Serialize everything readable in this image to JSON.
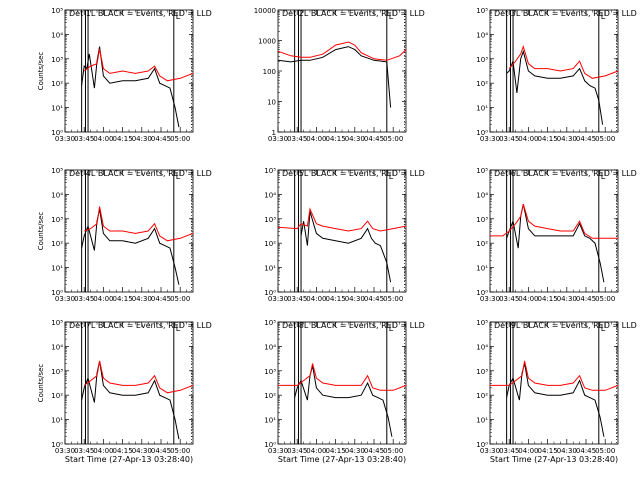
{
  "page": {
    "title": "",
    "colors": {
      "background": "#ffffff",
      "axes": "#000000",
      "events": "#000000",
      "lld": "#ff0000"
    }
  },
  "chart_data": [
    {
      "type": "line",
      "title": "Det 1L BLACK = Events, RED = LLD",
      "xlabel": "",
      "ylabel": "Counts/sec",
      "yscale": "log",
      "ylim_exp": [
        0,
        5
      ],
      "ytick_labels": [
        "10⁰",
        "10¹",
        "10²",
        "10³",
        "10⁴",
        "10⁵"
      ],
      "xlim": [
        "03:30",
        "05:10"
      ],
      "xtick_labels": [
        "03:30",
        "03:45",
        "04:00",
        "04:15",
        "04:30",
        "04:45",
        "05:00"
      ],
      "attenuator_lines": [
        "03:43",
        "03:46",
        "03:48",
        "04:55"
      ],
      "attenuator_label": "L",
      "series": [
        {
          "color": "events",
          "x": [
            "03:43",
            "03:45",
            "03:47",
            "03:49",
            "03:53",
            "03:55",
            "03:57",
            "04:00",
            "04:05",
            "04:15",
            "04:25",
            "04:35",
            "04:40",
            "04:44",
            "04:48",
            "04:52",
            "04:56",
            "04:59"
          ],
          "y_exp": [
            1.9,
            2.7,
            2.6,
            3.2,
            1.8,
            2.9,
            3.5,
            2.3,
            2.0,
            2.1,
            2.1,
            2.2,
            2.6,
            2.0,
            1.9,
            1.8,
            1.0,
            0.2
          ]
        },
        {
          "color": "lld",
          "x": [
            "03:45",
            "03:50",
            "03:55",
            "03:57",
            "04:00",
            "04:05",
            "04:15",
            "04:25",
            "04:35",
            "04:40",
            "04:44",
            "04:50",
            "05:00",
            "05:10"
          ],
          "y_exp": [
            2.5,
            2.7,
            2.8,
            3.4,
            2.6,
            2.4,
            2.5,
            2.4,
            2.5,
            2.7,
            2.3,
            2.1,
            2.2,
            2.4
          ]
        }
      ]
    },
    {
      "type": "line",
      "title": "Det 2L BLACK = Events, RED = LLD",
      "xlabel": "",
      "ylabel": "",
      "yscale": "log",
      "ylim_exp": [
        0,
        4
      ],
      "ytick_labels": [
        "1",
        "10",
        "100",
        "1000",
        "10000"
      ],
      "xlim": [
        "03:30",
        "05:10"
      ],
      "xtick_labels": [
        "03:30",
        "03:45",
        "04:00",
        "04:15",
        "04:30",
        "04:45",
        "05:00"
      ],
      "attenuator_lines": [
        "03:43",
        "03:46",
        "03:48",
        "04:55"
      ],
      "attenuator_label": "L",
      "series": [
        {
          "color": "events",
          "x": [
            "03:30",
            "03:40",
            "03:48",
            "03:55",
            "04:05",
            "04:15",
            "04:25",
            "04:30",
            "04:35",
            "04:45",
            "04:55",
            "04:58"
          ],
          "y_exp": [
            2.35,
            2.3,
            2.35,
            2.35,
            2.45,
            2.7,
            2.8,
            2.7,
            2.5,
            2.35,
            2.3,
            0.8
          ]
        },
        {
          "color": "lld",
          "x": [
            "03:30",
            "03:40",
            "03:48",
            "03:55",
            "04:05",
            "04:15",
            "04:25",
            "04:30",
            "04:35",
            "04:45",
            "04:55",
            "05:05",
            "05:10"
          ],
          "y_exp": [
            2.65,
            2.5,
            2.45,
            2.45,
            2.55,
            2.85,
            2.95,
            2.85,
            2.6,
            2.4,
            2.35,
            2.5,
            2.7
          ]
        }
      ]
    },
    {
      "type": "line",
      "title": "Det 3L BLACK = Events, RED = LLD",
      "xlabel": "",
      "ylabel": "",
      "yscale": "log",
      "ylim_exp": [
        0,
        5
      ],
      "ytick_labels": [
        "10⁰",
        "10¹",
        "10²",
        "10³",
        "10⁴",
        "10⁵"
      ],
      "xlim": [
        "03:30",
        "05:10"
      ],
      "xtick_labels": [
        "03:30",
        "03:45",
        "04:00",
        "04:15",
        "04:30",
        "04:45",
        "05:00"
      ],
      "attenuator_lines": [
        "03:43",
        "03:46",
        "03:48",
        "04:55"
      ],
      "attenuator_label": "L",
      "series": [
        {
          "color": "events",
          "x": [
            "03:43",
            "03:45",
            "03:48",
            "03:51",
            "03:54",
            "03:56",
            "04:00",
            "04:05",
            "04:15",
            "04:25",
            "04:35",
            "04:40",
            "04:44",
            "04:48",
            "04:52",
            "04:55",
            "04:58"
          ],
          "y_exp": [
            2.4,
            2.5,
            2.9,
            1.6,
            3.0,
            3.3,
            2.5,
            2.3,
            2.2,
            2.2,
            2.3,
            2.6,
            2.1,
            1.9,
            1.8,
            1.3,
            0.3
          ]
        },
        {
          "color": "lld",
          "x": [
            "03:45",
            "03:50",
            "03:54",
            "03:56",
            "04:00",
            "04:05",
            "04:15",
            "04:25",
            "04:35",
            "04:40",
            "04:44",
            "04:50",
            "05:00",
            "05:10"
          ],
          "y_exp": [
            2.6,
            2.9,
            3.2,
            3.5,
            2.8,
            2.6,
            2.6,
            2.5,
            2.6,
            2.9,
            2.4,
            2.2,
            2.3,
            2.5
          ]
        }
      ]
    },
    {
      "type": "line",
      "title": "Det 4L BLACK = Events, RED = LLD",
      "xlabel": "",
      "ylabel": "Counts/sec",
      "yscale": "log",
      "ylim_exp": [
        0,
        5
      ],
      "ytick_labels": [
        "10⁰",
        "10¹",
        "10²",
        "10³",
        "10⁴",
        "10⁵"
      ],
      "xlim": [
        "03:30",
        "05:10"
      ],
      "xtick_labels": [
        "03:30",
        "03:45",
        "04:00",
        "04:15",
        "04:30",
        "04:45",
        "05:00"
      ],
      "attenuator_lines": [
        "03:43",
        "03:46",
        "03:48",
        "04:55"
      ],
      "attenuator_label": "L",
      "series": [
        {
          "color": "events",
          "x": [
            "03:43",
            "03:45",
            "03:48",
            "03:53",
            "03:55",
            "03:57",
            "04:00",
            "04:05",
            "04:15",
            "04:25",
            "04:35",
            "04:40",
            "04:44",
            "04:48",
            "04:52",
            "04:56",
            "04:59"
          ],
          "y_exp": [
            1.8,
            2.3,
            2.7,
            1.7,
            2.9,
            3.4,
            2.4,
            2.1,
            2.1,
            2.0,
            2.2,
            2.6,
            2.0,
            1.9,
            1.8,
            1.0,
            0.3
          ]
        },
        {
          "color": "lld",
          "x": [
            "03:45",
            "03:50",
            "03:55",
            "03:57",
            "04:00",
            "04:05",
            "04:15",
            "04:25",
            "04:35",
            "04:40",
            "04:44",
            "04:50",
            "05:00",
            "05:10"
          ],
          "y_exp": [
            2.5,
            2.6,
            2.8,
            3.5,
            2.7,
            2.5,
            2.5,
            2.4,
            2.5,
            2.8,
            2.3,
            2.1,
            2.2,
            2.4
          ]
        }
      ]
    },
    {
      "type": "line",
      "title": "Det 5L BLACK = Events, RED = LLD",
      "xlabel": "",
      "ylabel": "",
      "yscale": "log",
      "ylim_exp": [
        0,
        5
      ],
      "ytick_labels": [
        "10⁰",
        "10¹",
        "10²",
        "10³",
        "10⁴",
        "10⁵"
      ],
      "xlim": [
        "03:30",
        "05:10"
      ],
      "xtick_labels": [
        "03:30",
        "03:45",
        "04:00",
        "04:15",
        "04:30",
        "04:45",
        "05:00"
      ],
      "attenuator_lines": [
        "03:43",
        "03:46",
        "03:48",
        "04:55"
      ],
      "attenuator_label": "L",
      "series": [
        {
          "color": "events",
          "x": [
            "03:48",
            "03:50",
            "03:53",
            "03:55",
            "04:00",
            "04:05",
            "04:15",
            "04:25",
            "04:35",
            "04:40",
            "04:43",
            "04:46",
            "04:50",
            "04:55",
            "04:58"
          ],
          "y_exp": [
            2.3,
            2.9,
            1.9,
            3.3,
            2.4,
            2.2,
            2.1,
            2.0,
            2.2,
            2.6,
            2.2,
            2.0,
            1.9,
            1.2,
            0.4
          ]
        },
        {
          "color": "lld",
          "x": [
            "03:30",
            "03:45",
            "03:48",
            "03:53",
            "03:55",
            "04:00",
            "04:05",
            "04:15",
            "04:25",
            "04:35",
            "04:40",
            "04:44",
            "04:50",
            "05:00",
            "05:10"
          ],
          "y_exp": [
            2.65,
            2.6,
            2.8,
            2.7,
            3.4,
            2.8,
            2.7,
            2.6,
            2.5,
            2.6,
            2.9,
            2.6,
            2.5,
            2.6,
            2.7
          ]
        }
      ]
    },
    {
      "type": "line",
      "title": "Det 6L BLACK = Events, RED = LLD",
      "xlabel": "",
      "ylabel": "",
      "yscale": "log",
      "ylim_exp": [
        0,
        5
      ],
      "ytick_labels": [
        "10⁰",
        "10¹",
        "10²",
        "10³",
        "10⁴",
        "10⁵"
      ],
      "xlim": [
        "03:30",
        "05:10"
      ],
      "xtick_labels": [
        "03:30",
        "03:45",
        "04:00",
        "04:15",
        "04:30",
        "04:45",
        "05:00"
      ],
      "attenuator_lines": [
        "03:43",
        "03:46",
        "03:48",
        "04:55"
      ],
      "attenuator_label": "L",
      "series": [
        {
          "color": "events",
          "x": [
            "03:43",
            "03:45",
            "03:48",
            "03:52",
            "03:54",
            "03:56",
            "04:00",
            "04:05",
            "04:15",
            "04:25",
            "04:35",
            "04:40",
            "04:44",
            "04:48",
            "04:52",
            "04:56",
            "04:59"
          ],
          "y_exp": [
            2.2,
            2.5,
            2.9,
            1.8,
            3.1,
            3.6,
            2.6,
            2.3,
            2.3,
            2.3,
            2.3,
            2.8,
            2.3,
            2.2,
            2.0,
            1.2,
            0.4
          ]
        },
        {
          "color": "lld",
          "x": [
            "03:30",
            "03:40",
            "03:45",
            "03:50",
            "03:54",
            "03:56",
            "04:00",
            "04:05",
            "04:15",
            "04:25",
            "04:35",
            "04:40",
            "04:44",
            "04:50",
            "05:00",
            "05:10"
          ],
          "y_exp": [
            2.3,
            2.3,
            2.5,
            2.8,
            3.1,
            3.6,
            2.9,
            2.7,
            2.6,
            2.5,
            2.5,
            2.9,
            2.4,
            2.2,
            2.2,
            2.2
          ]
        }
      ]
    },
    {
      "type": "line",
      "title": "Det 7L BLACK = Events, RED = LLD",
      "xlabel": "Start Time (27-Apr-13 03:28:40)",
      "ylabel": "Counts/sec",
      "yscale": "log",
      "ylim_exp": [
        0,
        5
      ],
      "ytick_labels": [
        "10⁰",
        "10¹",
        "10²",
        "10³",
        "10⁴",
        "10⁵"
      ],
      "xlim": [
        "03:30",
        "05:10"
      ],
      "xtick_labels": [
        "03:30",
        "03:45",
        "04:00",
        "04:15",
        "04:30",
        "04:45",
        "05:00"
      ],
      "attenuator_lines": [
        "03:43",
        "03:46",
        "03:48",
        "04:55"
      ],
      "attenuator_label": "L",
      "series": [
        {
          "color": "events",
          "x": [
            "03:43",
            "03:45",
            "03:48",
            "03:53",
            "03:55",
            "03:57",
            "04:00",
            "04:05",
            "04:15",
            "04:25",
            "04:35",
            "04:40",
            "04:44",
            "04:48",
            "04:52",
            "04:56",
            "04:59"
          ],
          "y_exp": [
            1.8,
            2.3,
            2.7,
            1.7,
            2.9,
            3.4,
            2.4,
            2.1,
            2.0,
            2.0,
            2.1,
            2.6,
            2.0,
            1.9,
            1.8,
            1.0,
            0.2
          ]
        },
        {
          "color": "lld",
          "x": [
            "03:45",
            "03:50",
            "03:55",
            "03:57",
            "04:00",
            "04:05",
            "04:15",
            "04:25",
            "04:35",
            "04:40",
            "04:44",
            "04:50",
            "05:00",
            "05:10"
          ],
          "y_exp": [
            2.4,
            2.6,
            2.8,
            3.4,
            2.7,
            2.5,
            2.4,
            2.4,
            2.5,
            2.8,
            2.3,
            2.1,
            2.2,
            2.4
          ]
        }
      ]
    },
    {
      "type": "line",
      "title": "Det 8L BLACK = Events, RED = LLD",
      "xlabel": "Start Time (27-Apr-13 03:28:40)",
      "ylabel": "",
      "yscale": "log",
      "ylim_exp": [
        0,
        5
      ],
      "ytick_labels": [
        "10⁰",
        "10¹",
        "10²",
        "10³",
        "10⁴",
        "10⁵"
      ],
      "xlim": [
        "03:30",
        "05:10"
      ],
      "xtick_labels": [
        "03:30",
        "03:45",
        "04:00",
        "04:15",
        "04:30",
        "04:45",
        "05:00"
      ],
      "attenuator_lines": [
        "03:43",
        "03:46",
        "03:48",
        "04:55"
      ],
      "attenuator_label": "L",
      "series": [
        {
          "color": "events",
          "x": [
            "03:43",
            "03:45",
            "03:48",
            "03:53",
            "03:55",
            "03:57",
            "04:00",
            "04:05",
            "04:15",
            "04:25",
            "04:35",
            "04:40",
            "04:44",
            "04:48",
            "04:52",
            "04:56",
            "04:59"
          ],
          "y_exp": [
            1.9,
            2.3,
            2.6,
            1.8,
            2.8,
            3.2,
            2.3,
            2.0,
            1.9,
            1.9,
            2.0,
            2.5,
            2.0,
            1.9,
            1.8,
            1.1,
            0.3
          ]
        },
        {
          "color": "lld",
          "x": [
            "03:30",
            "03:45",
            "03:50",
            "03:55",
            "03:57",
            "04:00",
            "04:05",
            "04:15",
            "04:25",
            "04:35",
            "04:40",
            "04:44",
            "04:50",
            "05:00",
            "05:10"
          ],
          "y_exp": [
            2.4,
            2.4,
            2.6,
            2.8,
            3.3,
            2.7,
            2.5,
            2.4,
            2.4,
            2.4,
            2.8,
            2.3,
            2.2,
            2.2,
            2.4
          ]
        }
      ]
    },
    {
      "type": "line",
      "title": "Det 9L BLACK = Events, RED = LLD",
      "xlabel": "Start Time (27-Apr-13 03:28:40)",
      "ylabel": "",
      "yscale": "log",
      "ylim_exp": [
        0,
        5
      ],
      "ytick_labels": [
        "10⁰",
        "10¹",
        "10²",
        "10³",
        "10⁴",
        "10⁵"
      ],
      "xlim": [
        "03:30",
        "05:10"
      ],
      "xtick_labels": [
        "03:30",
        "03:45",
        "04:00",
        "04:15",
        "04:30",
        "04:45",
        "05:00"
      ],
      "attenuator_lines": [
        "03:43",
        "03:46",
        "03:48",
        "04:55"
      ],
      "attenuator_label": "L",
      "series": [
        {
          "color": "events",
          "x": [
            "03:43",
            "03:45",
            "03:48",
            "03:53",
            "03:55",
            "03:57",
            "04:00",
            "04:05",
            "04:15",
            "04:25",
            "04:35",
            "04:40",
            "04:44",
            "04:48",
            "04:52",
            "04:56",
            "04:59"
          ],
          "y_exp": [
            1.9,
            2.4,
            2.7,
            1.8,
            2.9,
            3.3,
            2.4,
            2.1,
            2.0,
            2.0,
            2.1,
            2.6,
            2.0,
            1.9,
            1.8,
            1.1,
            0.3
          ]
        },
        {
          "color": "lld",
          "x": [
            "03:30",
            "03:45",
            "03:50",
            "03:55",
            "03:57",
            "04:00",
            "04:05",
            "04:15",
            "04:25",
            "04:35",
            "04:40",
            "04:44",
            "04:50",
            "05:00",
            "05:10"
          ],
          "y_exp": [
            2.4,
            2.4,
            2.6,
            2.8,
            3.4,
            2.7,
            2.5,
            2.4,
            2.4,
            2.5,
            2.8,
            2.3,
            2.2,
            2.2,
            2.4
          ]
        }
      ]
    }
  ]
}
